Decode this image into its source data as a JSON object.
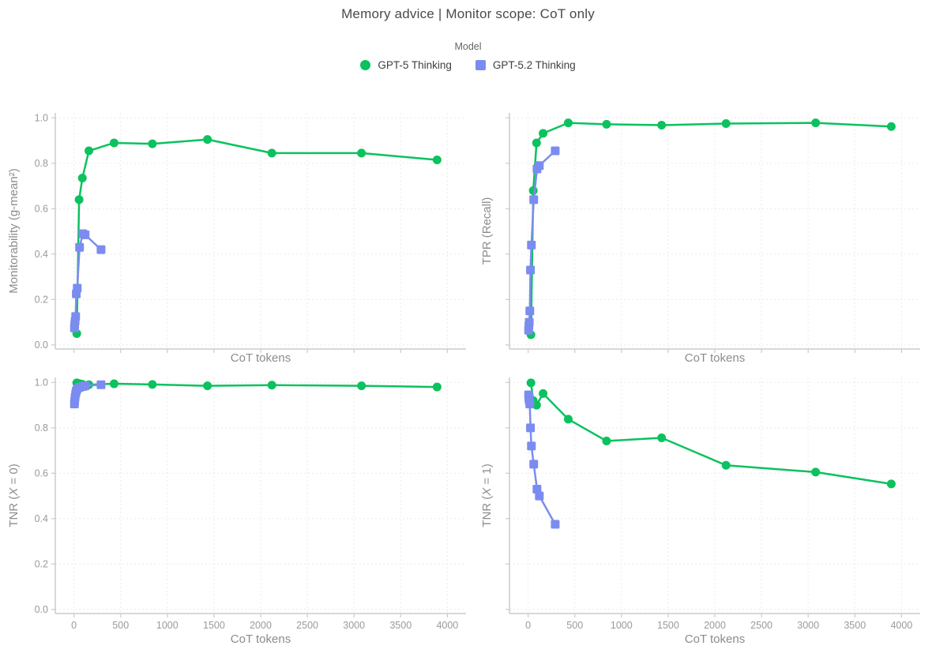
{
  "title": "Memory advice | Monitor scope: CoT only",
  "legend": {
    "title": "Model",
    "entries": [
      {
        "label": "GPT-5 Thinking",
        "marker": "circle",
        "color": "#0bc25e"
      },
      {
        "label": "GPT-5.2 Thinking",
        "marker": "square",
        "color": "#7b8cf0"
      }
    ]
  },
  "style": {
    "title_color": "#4a4a4a",
    "axis_title_color": "#8c8c8c",
    "tick_label_color": "#9a9a9a",
    "spine_color": "#cbcbcb",
    "grid_color": "#ebebeb",
    "background": "#ffffff"
  },
  "chart_data": [
    {
      "type": "line",
      "ylabel": "Monitorability (g-mean²)",
      "xlabel": "CoT tokens",
      "xlim": [
        -200,
        4200
      ],
      "ylim": [
        -0.018,
        1.022
      ],
      "grid": true,
      "xticks": {
        "values": [
          0,
          500,
          1000,
          1500,
          2000,
          2500,
          3000,
          3500,
          4000
        ],
        "labels": [],
        "show_labels": false
      },
      "yticks": {
        "values": [
          0.0,
          0.2,
          0.4,
          0.6,
          0.8,
          1.0
        ],
        "labels": [
          "0.0",
          "0.2",
          "0.4",
          "0.6",
          "0.8",
          "1.0"
        ],
        "show_labels": true
      },
      "series": [
        {
          "name": "GPT-5 Thinking",
          "x": [
            30,
            55,
            90,
            160,
            430,
            840,
            1430,
            2120,
            3080,
            3890
          ],
          "y": [
            0.05,
            0.64,
            0.735,
            0.855,
            0.89,
            0.886,
            0.905,
            0.845,
            0.845,
            0.815
          ]
        },
        {
          "name": "GPT-5.2 Thinking",
          "x": [
            5,
            8,
            12,
            18,
            25,
            35,
            60,
            95,
            120,
            290
          ],
          "y": [
            0.075,
            0.09,
            0.105,
            0.125,
            0.225,
            0.25,
            0.43,
            0.49,
            0.485,
            0.42
          ]
        }
      ]
    },
    {
      "type": "line",
      "ylabel": "TPR (Recall)",
      "xlabel": "CoT tokens",
      "xlim": [
        -200,
        4200
      ],
      "ylim": [
        -0.018,
        1.022
      ],
      "grid": true,
      "xticks": {
        "values": [
          0,
          500,
          1000,
          1500,
          2000,
          2500,
          3000,
          3500,
          4000
        ],
        "labels": [],
        "show_labels": false
      },
      "yticks": {
        "values": [
          0.0,
          0.2,
          0.4,
          0.6,
          0.8,
          1.0
        ],
        "labels": [],
        "show_labels": false
      },
      "series": [
        {
          "name": "GPT-5 Thinking",
          "x": [
            30,
            55,
            90,
            160,
            430,
            840,
            1430,
            2120,
            3080,
            3890
          ],
          "y": [
            0.045,
            0.68,
            0.89,
            0.932,
            0.978,
            0.972,
            0.968,
            0.975,
            0.978,
            0.962
          ]
        },
        {
          "name": "GPT-5.2 Thinking",
          "x": [
            5,
            8,
            12,
            18,
            25,
            35,
            60,
            95,
            120,
            290
          ],
          "y": [
            0.065,
            0.085,
            0.1,
            0.15,
            0.33,
            0.44,
            0.64,
            0.775,
            0.79,
            0.855
          ]
        }
      ]
    },
    {
      "type": "line",
      "ylabel": "TNR (X = 0)",
      "xlabel": "CoT tokens",
      "xlim": [
        -200,
        4200
      ],
      "ylim": [
        -0.018,
        1.022
      ],
      "grid": true,
      "xticks": {
        "values": [
          0,
          500,
          1000,
          1500,
          2000,
          2500,
          3000,
          3500,
          4000
        ],
        "labels": [
          "0",
          "500",
          "1000",
          "1500",
          "2000",
          "2500",
          "3000",
          "3500",
          "4000"
        ],
        "show_labels": true
      },
      "yticks": {
        "values": [
          0.0,
          0.2,
          0.4,
          0.6,
          0.8,
          1.0
        ],
        "labels": [
          "0.0",
          "0.2",
          "0.4",
          "0.6",
          "0.8",
          "1.0"
        ],
        "show_labels": true
      },
      "series": [
        {
          "name": "GPT-5 Thinking",
          "x": [
            30,
            55,
            90,
            160,
            430,
            840,
            1430,
            2120,
            3080,
            3890
          ],
          "y": [
            0.998,
            0.995,
            0.992,
            0.99,
            0.994,
            0.991,
            0.985,
            0.988,
            0.985,
            0.98
          ]
        },
        {
          "name": "GPT-5.2 Thinking",
          "x": [
            5,
            8,
            12,
            18,
            25,
            35,
            60,
            95,
            120,
            290
          ],
          "y": [
            0.905,
            0.92,
            0.935,
            0.95,
            0.962,
            0.972,
            0.978,
            0.982,
            0.985,
            0.99
          ]
        }
      ]
    },
    {
      "type": "line",
      "ylabel": "TNR (X = 1)",
      "xlabel": "CoT tokens",
      "xlim": [
        -200,
        4200
      ],
      "ylim": [
        -0.018,
        1.022
      ],
      "grid": true,
      "xticks": {
        "values": [
          0,
          500,
          1000,
          1500,
          2000,
          2500,
          3000,
          3500,
          4000
        ],
        "labels": [
          "0",
          "500",
          "1000",
          "1500",
          "2000",
          "2500",
          "3000",
          "3500",
          "4000"
        ],
        "show_labels": true
      },
      "yticks": {
        "values": [
          0.0,
          0.2,
          0.4,
          0.6,
          0.8,
          1.0
        ],
        "labels": [],
        "show_labels": false
      },
      "series": [
        {
          "name": "GPT-5 Thinking",
          "x": [
            30,
            55,
            90,
            160,
            430,
            840,
            1430,
            2120,
            3080,
            3890
          ],
          "y": [
            0.998,
            0.92,
            0.9,
            0.951,
            0.838,
            0.742,
            0.756,
            0.635,
            0.605,
            0.553
          ]
        },
        {
          "name": "GPT-5.2 Thinking",
          "x": [
            5,
            8,
            12,
            18,
            25,
            35,
            60,
            95,
            120,
            290
          ],
          "y": [
            0.945,
            0.93,
            0.92,
            0.905,
            0.8,
            0.72,
            0.64,
            0.53,
            0.5,
            0.375
          ]
        }
      ]
    }
  ]
}
